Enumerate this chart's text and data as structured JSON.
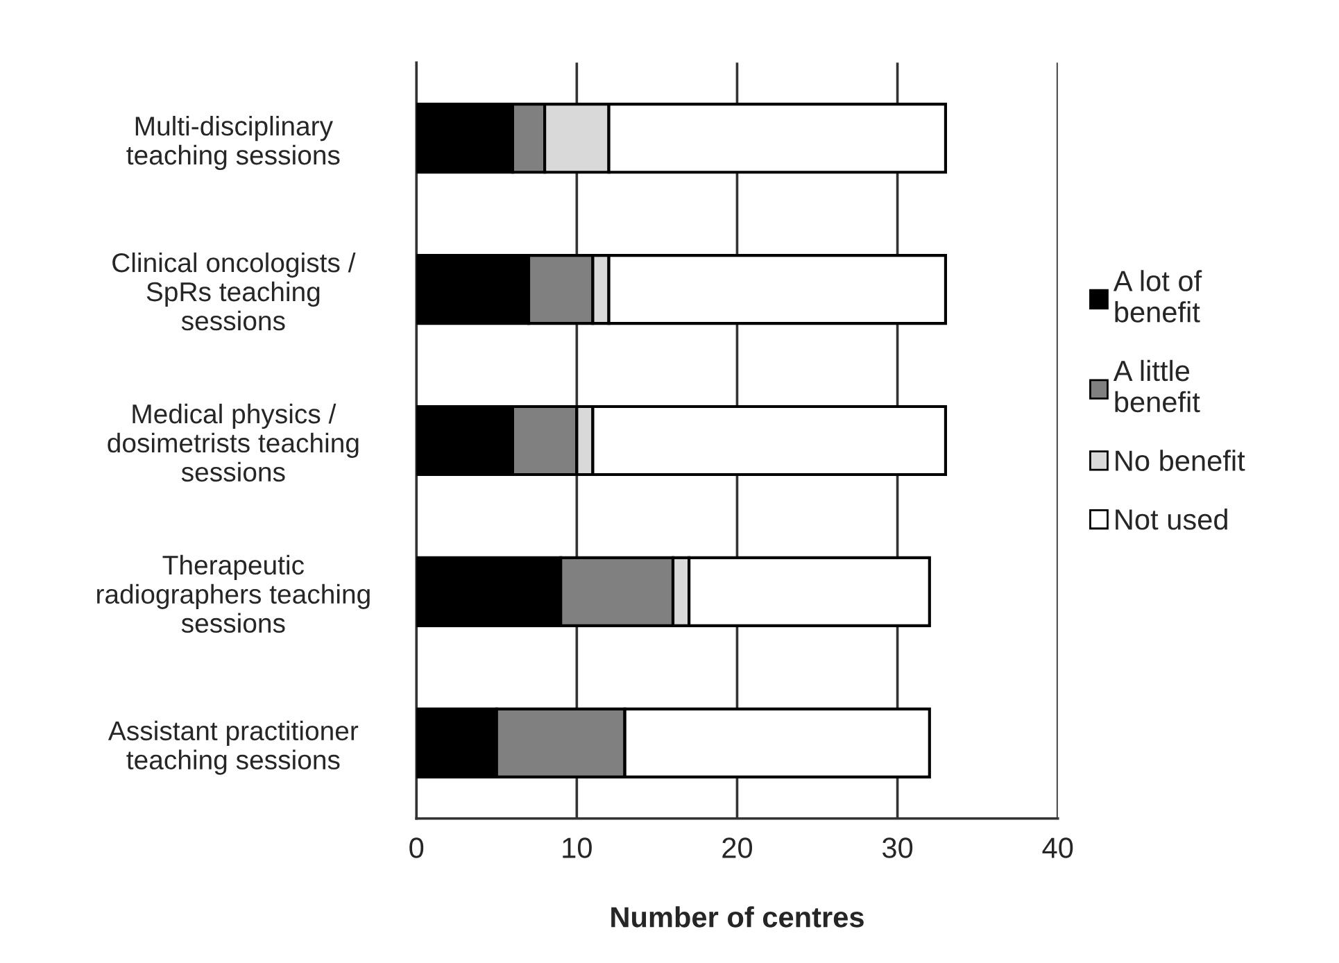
{
  "chart_data": {
    "type": "bar",
    "orientation": "horizontal",
    "stacked": true,
    "xlabel": "Number of centres",
    "categories": [
      "Multi-disciplinary\nteaching sessions",
      "Clinical oncologists /\nSpRs teaching\nsessions",
      "Medical physics /\ndosimetrists teaching\nsessions",
      "Therapeutic\nradiographers teaching\nsessions",
      "Assistant practitioner\nteaching sessions"
    ],
    "series": [
      {
        "name": "A lot of\nbenefit",
        "color": "#000000",
        "values": [
          6,
          7,
          6,
          9,
          5
        ]
      },
      {
        "name": "A little\nbenefit",
        "color": "#808080",
        "values": [
          2,
          4,
          4,
          7,
          8
        ]
      },
      {
        "name": "No benefit",
        "color": "#d9d9d9",
        "values": [
          4,
          1,
          1,
          1,
          0
        ]
      },
      {
        "name": "Not used",
        "color": "#ffffff",
        "values": [
          21,
          21,
          22,
          15,
          19
        ]
      }
    ],
    "xlim": [
      0,
      40
    ],
    "xticks": [
      0,
      10,
      20,
      30,
      40
    ],
    "grid": "x",
    "legend": "right"
  }
}
